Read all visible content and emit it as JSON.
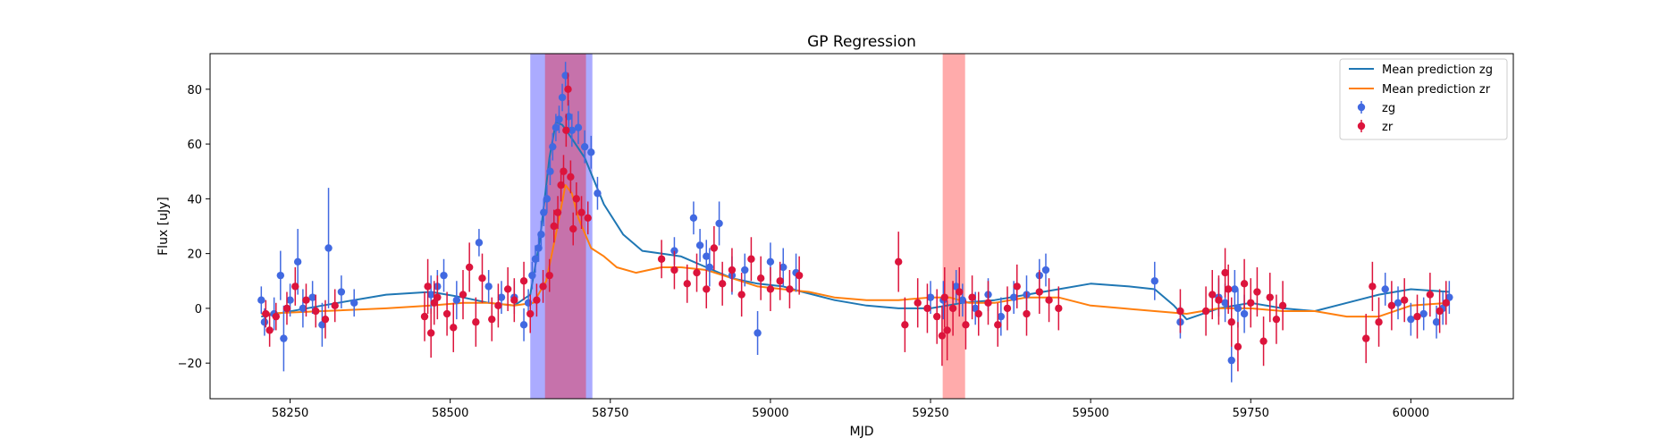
{
  "chart_data": {
    "type": "scatter",
    "title": "GP Regression",
    "xlabel": "MJD",
    "ylabel": "Flux [uJy]",
    "xlim": [
      58125,
      60160
    ],
    "ylim": [
      -33,
      93
    ],
    "x_ticks": [
      58250,
      58500,
      58750,
      59000,
      59250,
      59500,
      59750,
      60000
    ],
    "y_ticks": [
      -20,
      0,
      20,
      40,
      60,
      80
    ],
    "grid": false,
    "legend_position": "top-right",
    "colors": {
      "zg_line": "#1f77b4",
      "zr_line": "#ff7f0e",
      "zg_points": "#4169e1",
      "zr_points": "#dc143c",
      "zg_band": "#0000ff",
      "zr_band": "#ff0000"
    },
    "shaded_regions": [
      {
        "series": "zg",
        "x": [
          58625,
          58722
        ]
      },
      {
        "series": "zr",
        "x": [
          58648,
          58712
        ]
      },
      {
        "series": "zr",
        "x": [
          59269,
          59304
        ]
      }
    ],
    "series": [
      {
        "name": "Mean prediction zg",
        "kind": "line",
        "x": [
          58205,
          58300,
          58400,
          58470,
          58520,
          58560,
          58600,
          58625,
          58640,
          58655,
          58665,
          58675,
          58690,
          58710,
          58740,
          58770,
          58800,
          58830,
          58860,
          58900,
          58940,
          58980,
          59020,
          59050,
          59100,
          59150,
          59200,
          59250,
          59300,
          59350,
          59400,
          59450,
          59500,
          59560,
          59600,
          59630,
          59650,
          59700,
          59750,
          59800,
          59850,
          59900,
          59950,
          60000,
          60060
        ],
        "y": [
          -3,
          1,
          5,
          6,
          4,
          2,
          1,
          5,
          25,
          55,
          68,
          67,
          62,
          55,
          38,
          27,
          21,
          20,
          19,
          15,
          11,
          9,
          8,
          6,
          3,
          1,
          0,
          0,
          2,
          3,
          5,
          7,
          9,
          8,
          7,
          1,
          -4,
          0,
          2,
          0,
          -1,
          2,
          5,
          7,
          6
        ]
      },
      {
        "name": "Mean prediction zr",
        "kind": "line",
        "x": [
          58205,
          58300,
          58400,
          58470,
          58520,
          58560,
          58600,
          58630,
          58650,
          58665,
          58680,
          58690,
          58700,
          58720,
          58740,
          58760,
          58790,
          58810,
          58830,
          58860,
          58900,
          58940,
          58980,
          59020,
          59060,
          59100,
          59150,
          59200,
          59250,
          59280,
          59310,
          59350,
          59400,
          59450,
          59500,
          59550,
          59600,
          59650,
          59700,
          59750,
          59800,
          59850,
          59900,
          59950,
          60000,
          60060
        ],
        "y": [
          -2,
          -1,
          0,
          1,
          2,
          2,
          1,
          2,
          10,
          27,
          45,
          42,
          33,
          22,
          19,
          15,
          13,
          14,
          15,
          15,
          14,
          11,
          8,
          7,
          6,
          4,
          3,
          3,
          4,
          4,
          2,
          2,
          4,
          4,
          1,
          0,
          -1,
          -2,
          0,
          0,
          -1,
          -1,
          -3,
          -3,
          1,
          2
        ]
      },
      {
        "name": "zg",
        "kind": "errorbar",
        "x": [
          58205,
          58210,
          58225,
          58235,
          58240,
          58250,
          58262,
          58270,
          58285,
          58300,
          58310,
          58330,
          58350,
          58470,
          58480,
          58490,
          58510,
          58545,
          58560,
          58580,
          58600,
          58615,
          58622,
          58628,
          58633,
          58638,
          58642,
          58646,
          58651,
          58656,
          58660,
          58665,
          58670,
          58675,
          58680,
          58685,
          58690,
          58700,
          58710,
          58720,
          58730,
          58850,
          58880,
          58890,
          58900,
          58905,
          58920,
          58940,
          58960,
          58980,
          59000,
          59020,
          59040,
          59250,
          59270,
          59290,
          59300,
          59320,
          59340,
          59360,
          59380,
          59400,
          59420,
          59430,
          59600,
          59640,
          59700,
          59710,
          59720,
          59725,
          59730,
          59740,
          59960,
          59980,
          60000,
          60020,
          60040,
          60050,
          60060
        ],
        "y": [
          3,
          -5,
          -2,
          12,
          -11,
          3,
          17,
          0,
          4,
          -6,
          22,
          6,
          2,
          5,
          8,
          12,
          3,
          24,
          8,
          4,
          4,
          -6,
          2,
          12,
          18,
          22,
          27,
          35,
          40,
          50,
          59,
          66,
          69,
          77,
          85,
          70,
          65,
          66,
          59,
          57,
          42,
          21,
          33,
          23,
          19,
          15,
          31,
          12,
          14,
          -9,
          17,
          15,
          13,
          4,
          3,
          8,
          3,
          0,
          5,
          -3,
          4,
          5,
          12,
          14,
          10,
          -5,
          4,
          2,
          -19,
          7,
          0,
          -2,
          7,
          2,
          -4,
          -2,
          -5,
          0,
          4
        ],
        "err": [
          5,
          5,
          6,
          9,
          12,
          6,
          12,
          7,
          6,
          8,
          22,
          6,
          5,
          7,
          6,
          6,
          7,
          5,
          6,
          6,
          6,
          6,
          5,
          5,
          5,
          5,
          5,
          5,
          5,
          5,
          5,
          5,
          5,
          5,
          5,
          6,
          6,
          6,
          6,
          6,
          6,
          5,
          6,
          6,
          6,
          7,
          8,
          7,
          6,
          8,
          7,
          7,
          7,
          6,
          7,
          6,
          6,
          6,
          6,
          7,
          6,
          7,
          6,
          6,
          7,
          6,
          7,
          7,
          8,
          7,
          7,
          7,
          6,
          6,
          6,
          6,
          6,
          6,
          6
        ]
      },
      {
        "name": "zr",
        "kind": "errorbar",
        "x": [
          58212,
          58218,
          58228,
          58245,
          58258,
          58275,
          58290,
          58305,
          58320,
          58460,
          58465,
          58470,
          58475,
          58480,
          58495,
          58505,
          58520,
          58530,
          58540,
          58550,
          58565,
          58575,
          58590,
          58600,
          58615,
          58625,
          58635,
          58645,
          58655,
          58662,
          58668,
          58673,
          58677,
          58681,
          58684,
          58688,
          58692,
          58697,
          58705,
          58715,
          58830,
          58850,
          58870,
          58885,
          58900,
          58912,
          58925,
          58940,
          58955,
          58970,
          58985,
          59000,
          59015,
          59030,
          59045,
          59200,
          59210,
          59230,
          59245,
          59260,
          59268,
          59272,
          59276,
          59285,
          59295,
          59305,
          59315,
          59325,
          59340,
          59355,
          59370,
          59385,
          59400,
          59420,
          59435,
          59450,
          59640,
          59680,
          59690,
          59700,
          59710,
          59715,
          59720,
          59730,
          59740,
          59750,
          59760,
          59770,
          59780,
          59790,
          59800,
          59930,
          59940,
          59950,
          59970,
          59990,
          60010,
          60030,
          60045,
          60055
        ],
        "y": [
          -2,
          -8,
          -3,
          0,
          8,
          3,
          -1,
          -4,
          1,
          -3,
          8,
          -9,
          2,
          4,
          -2,
          -7,
          5,
          15,
          -5,
          11,
          -4,
          1,
          7,
          3,
          10,
          -2,
          3,
          8,
          12,
          30,
          35,
          45,
          50,
          65,
          80,
          48,
          29,
          40,
          35,
          33,
          18,
          14,
          9,
          13,
          7,
          22,
          9,
          14,
          5,
          18,
          11,
          7,
          10,
          7,
          12,
          17,
          -6,
          2,
          0,
          -3,
          -10,
          4,
          -8,
          0,
          6,
          -6,
          4,
          -2,
          2,
          -6,
          0,
          8,
          -2,
          6,
          3,
          0,
          -1,
          -1,
          5,
          3,
          13,
          7,
          -5,
          -14,
          9,
          2,
          6,
          -12,
          4,
          -4,
          1,
          -11,
          8,
          -5,
          1,
          3,
          -3,
          5,
          -1,
          2
        ],
        "err": [
          5,
          6,
          5,
          6,
          7,
          6,
          6,
          7,
          6,
          9,
          10,
          9,
          8,
          8,
          8,
          9,
          9,
          9,
          9,
          9,
          8,
          8,
          8,
          8,
          7,
          7,
          6,
          6,
          6,
          6,
          6,
          6,
          6,
          6,
          6,
          6,
          6,
          6,
          6,
          6,
          7,
          7,
          7,
          7,
          7,
          8,
          8,
          8,
          8,
          8,
          8,
          8,
          7,
          7,
          7,
          11,
          10,
          9,
          9,
          10,
          11,
          11,
          11,
          10,
          9,
          9,
          8,
          8,
          8,
          8,
          8,
          8,
          8,
          8,
          8,
          8,
          8,
          9,
          9,
          9,
          9,
          9,
          9,
          9,
          9,
          9,
          9,
          9,
          9,
          9,
          9,
          9,
          9,
          9,
          9,
          8,
          8,
          8,
          8,
          8
        ]
      }
    ]
  }
}
